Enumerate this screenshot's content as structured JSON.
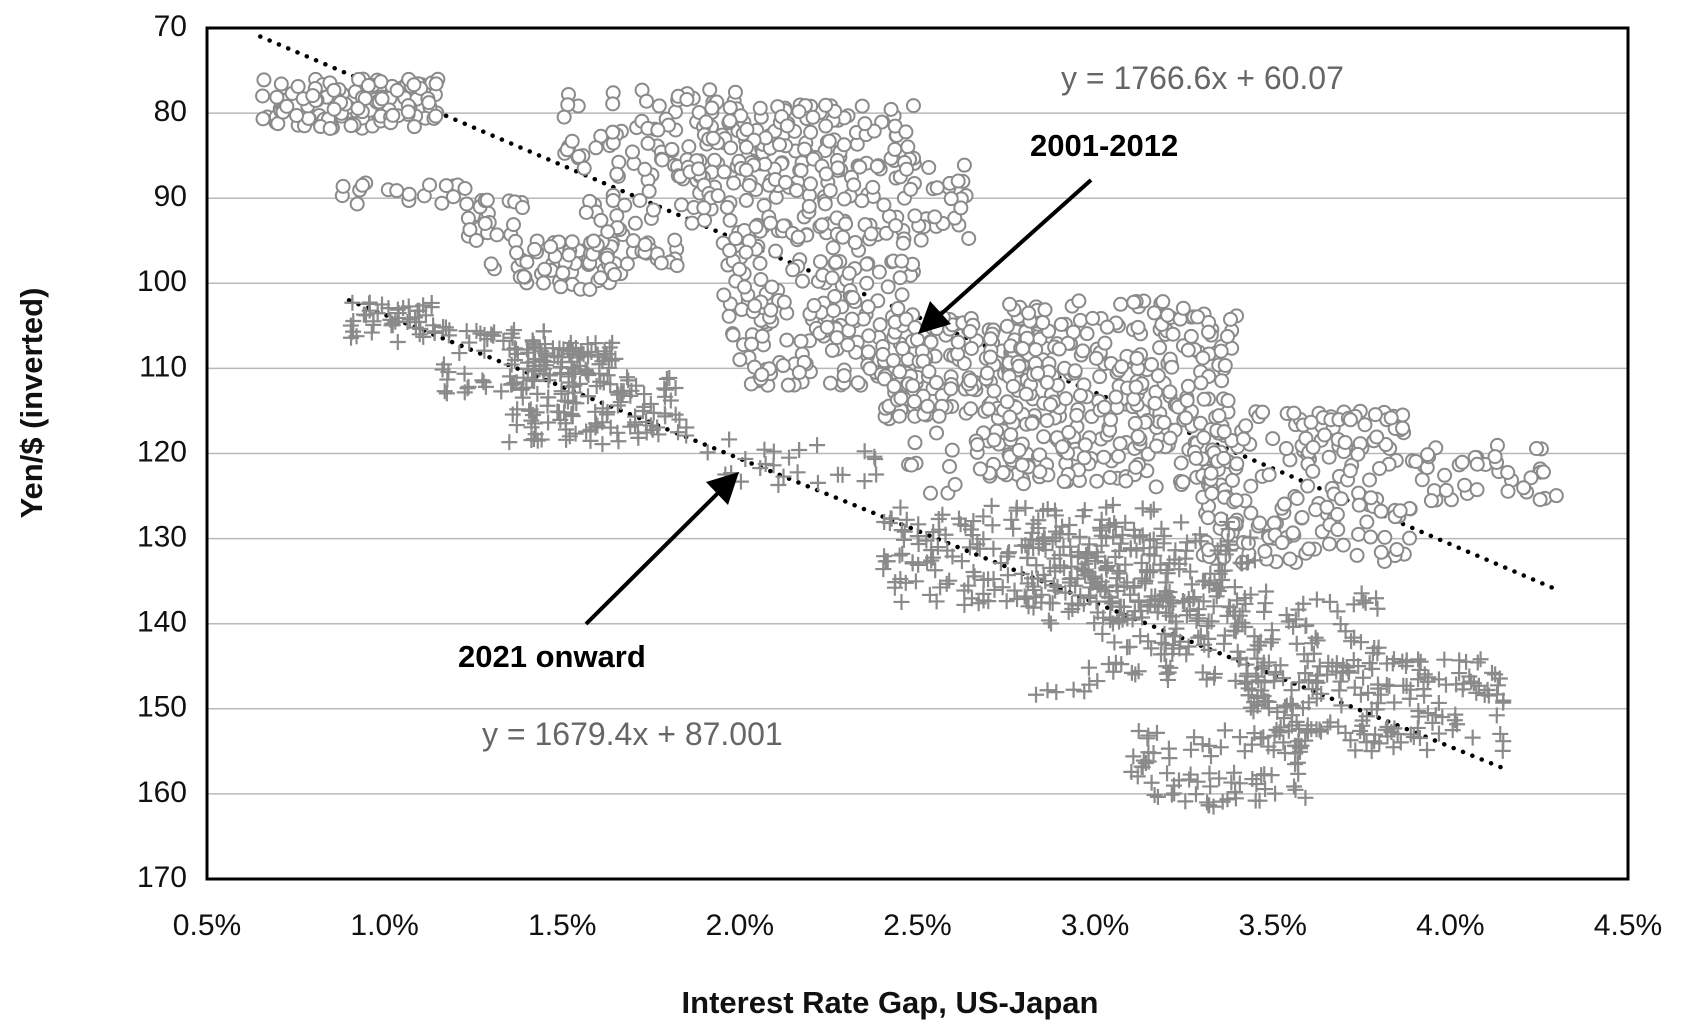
{
  "chart_data": {
    "type": "scatter",
    "xlabel": "Interest Rate Gap, US-Japan",
    "ylabel": "Yen/$ (inverted)",
    "xlim": [
      0.005,
      0.045
    ],
    "ylim": [
      70,
      170
    ],
    "y_inverted": true,
    "x_ticks": [
      0.005,
      0.01,
      0.015,
      0.02,
      0.025,
      0.03,
      0.035,
      0.04,
      0.045
    ],
    "x_tick_labels": [
      "0.5%",
      "1.0%",
      "1.5%",
      "2.0%",
      "2.5%",
      "3.0%",
      "3.5%",
      "4.0%",
      "4.5%"
    ],
    "y_ticks": [
      70,
      80,
      90,
      100,
      110,
      120,
      130,
      140,
      150,
      160,
      170
    ],
    "y_tick_labels": [
      "70",
      "80",
      "90",
      "100",
      "110",
      "120",
      "130",
      "140",
      "150",
      "160",
      "170"
    ],
    "grid": "horizontal",
    "colors": {
      "markers": "#8a8a8a",
      "trendline": "#000000",
      "equation_text": "#666666",
      "axis": "#000000"
    },
    "series": [
      {
        "marker": "circle",
        "clusters": [
          {
            "x": [
              0.0065,
              0.0115
            ],
            "y": [
              76,
              82
            ],
            "n": 120
          },
          {
            "x": [
              0.008,
              0.0125
            ],
            "y": [
              88,
              91
            ],
            "n": 18
          },
          {
            "x": [
              0.012,
              0.014
            ],
            "y": [
              90,
              95
            ],
            "n": 25
          },
          {
            "x": [
              0.013,
              0.0165
            ],
            "y": [
              95,
              101
            ],
            "n": 60
          },
          {
            "x": [
              0.015,
              0.02
            ],
            "y": [
              77,
              88
            ],
            "n": 90
          },
          {
            "x": [
              0.0155,
              0.0185
            ],
            "y": [
              89,
              99
            ],
            "n": 45
          },
          {
            "x": [
              0.019,
              0.025
            ],
            "y": [
              79,
              86
            ],
            "n": 100
          },
          {
            "x": [
              0.0185,
              0.0265
            ],
            "y": [
              86,
              95
            ],
            "n": 120
          },
          {
            "x": [
              0.0195,
              0.025
            ],
            "y": [
              93,
              112
            ],
            "n": 190
          },
          {
            "x": [
              0.024,
              0.029
            ],
            "y": [
              104,
              116
            ],
            "n": 160
          },
          {
            "x": [
              0.027,
              0.034
            ],
            "y": [
              102,
              124
            ],
            "n": 340
          },
          {
            "x": [
              0.033,
              0.039
            ],
            "y": [
              115,
              133
            ],
            "n": 190
          },
          {
            "x": [
              0.039,
              0.043
            ],
            "y": [
              119,
              126
            ],
            "n": 40
          },
          {
            "x": [
              0.0245,
              0.027
            ],
            "y": [
              117,
              125
            ],
            "n": 15
          }
        ]
      },
      {
        "marker": "plus",
        "clusters": [
          {
            "x": [
              0.009,
              0.0115
            ],
            "y": [
              102,
              107
            ],
            "n": 45
          },
          {
            "x": [
              0.0115,
              0.0145
            ],
            "y": [
              105,
              113
            ],
            "n": 55
          },
          {
            "x": [
              0.014,
              0.0165
            ],
            "y": [
              107,
              111
            ],
            "n": 70
          },
          {
            "x": [
              0.0135,
              0.0185
            ],
            "y": [
              111,
              119
            ],
            "n": 110
          },
          {
            "x": [
              0.019,
              0.024
            ],
            "y": [
              118,
              124
            ],
            "n": 25
          },
          {
            "x": [
              0.024,
              0.032
            ],
            "y": [
              126,
              138
            ],
            "n": 180
          },
          {
            "x": [
              0.028,
              0.0345
            ],
            "y": [
              128,
              140
            ],
            "n": 160
          },
          {
            "x": [
              0.03,
              0.038
            ],
            "y": [
              136,
              147
            ],
            "n": 150
          },
          {
            "x": [
              0.034,
              0.0415
            ],
            "y": [
              144,
              155
            ],
            "n": 180
          },
          {
            "x": [
              0.031,
              0.036
            ],
            "y": [
              152,
              162
            ],
            "n": 75
          },
          {
            "x": [
              0.028,
              0.031
            ],
            "y": [
              145,
              150
            ],
            "n": 8
          }
        ]
      }
    ],
    "trendlines": [
      {
        "x_range": [
          0.0065,
          0.043
        ],
        "y_start": 71,
        "y_end": 136
      },
      {
        "x_range": [
          0.009,
          0.0415
        ],
        "y_start": 102,
        "y_end": 157
      }
    ],
    "annotations": [
      {
        "text": "y = 1766.6x + 60.07",
        "style": "equation"
      },
      {
        "text": "2001-2012",
        "style": "bold"
      },
      {
        "text": "2021 onward",
        "style": "bold"
      },
      {
        "text": "y = 1679.4x + 87.001",
        "style": "equation"
      }
    ]
  }
}
